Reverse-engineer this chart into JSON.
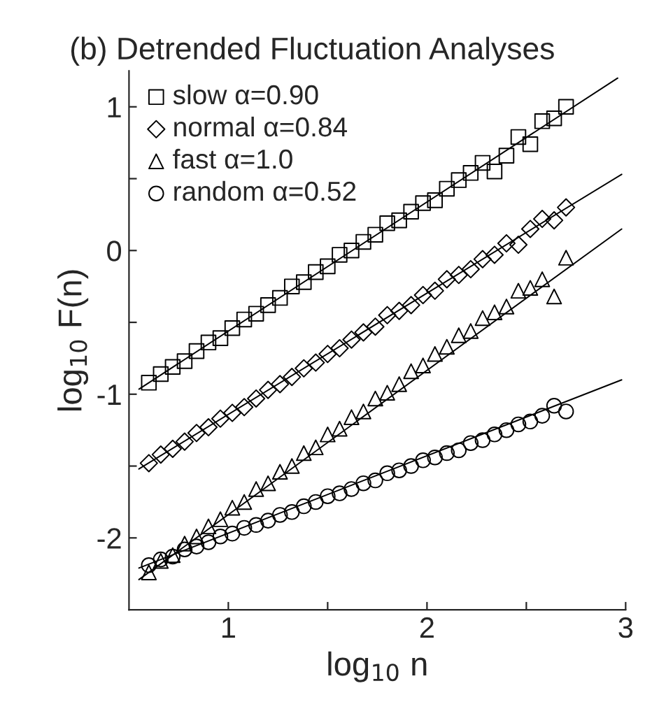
{
  "chart_data": {
    "type": "scatter",
    "title": "(b) Detrended Fluctuation Analyses",
    "xlabel": "log$_{10}$ n",
    "ylabel": "log$_{10}$ F(n)",
    "xlim": [
      0.5,
      3.0
    ],
    "ylim": [
      -2.5,
      1.25
    ],
    "xticks": [
      1,
      {
        "value": 1.5,
        "label": null
      },
      2,
      {
        "value": 2.5,
        "label": null
      },
      3
    ],
    "yticks": [
      -2,
      {
        "value": -1.5,
        "label": null
      },
      -1,
      {
        "value": -0.5,
        "label": null
      },
      0,
      {
        "value": 0.5,
        "label": null
      },
      1
    ],
    "legend": "top left",
    "x": [
      0.6,
      0.66,
      0.72,
      0.78,
      0.84,
      0.9,
      0.96,
      1.02,
      1.08,
      1.14,
      1.2,
      1.26,
      1.32,
      1.38,
      1.44,
      1.5,
      1.56,
      1.62,
      1.68,
      1.74,
      1.8,
      1.86,
      1.92,
      1.98,
      2.04,
      2.1,
      2.16,
      2.22,
      2.28,
      2.34,
      2.4,
      2.46,
      2.52,
      2.58,
      2.64,
      2.7
    ],
    "series": [
      {
        "name": "slow α=0.90",
        "color": "#000000",
        "marker": "square",
        "values": [
          -0.92,
          -0.86,
          -0.81,
          -0.77,
          -0.7,
          -0.64,
          -0.61,
          -0.54,
          -0.48,
          -0.44,
          -0.38,
          -0.33,
          -0.25,
          -0.22,
          -0.15,
          -0.11,
          -0.03,
          0.0,
          0.06,
          0.11,
          0.19,
          0.21,
          0.27,
          0.33,
          0.35,
          0.43,
          0.49,
          0.54,
          0.61,
          0.55,
          0.66,
          0.79,
          0.74,
          0.9,
          0.92,
          1.0
        ]
      },
      {
        "name": "normal α=0.84",
        "color": "#000000",
        "marker": "diamond",
        "values": [
          -1.48,
          -1.42,
          -1.38,
          -1.33,
          -1.27,
          -1.23,
          -1.17,
          -1.13,
          -1.09,
          -1.03,
          -0.97,
          -0.93,
          -0.88,
          -0.82,
          -0.78,
          -0.72,
          -0.68,
          -0.62,
          -0.57,
          -0.53,
          -0.45,
          -0.42,
          -0.38,
          -0.31,
          -0.28,
          -0.2,
          -0.17,
          -0.13,
          -0.06,
          -0.03,
          0.05,
          0.04,
          0.15,
          0.22,
          0.21,
          0.3
        ]
      },
      {
        "name": "fast α=1.0",
        "color": "#000000",
        "marker": "triangle",
        "values": [
          -2.24,
          -2.16,
          -2.12,
          -2.04,
          -1.99,
          -1.92,
          -1.87,
          -1.79,
          -1.75,
          -1.66,
          -1.62,
          -1.54,
          -1.5,
          -1.41,
          -1.37,
          -1.28,
          -1.24,
          -1.16,
          -1.12,
          -1.03,
          -0.99,
          -0.93,
          -0.84,
          -0.8,
          -0.72,
          -0.67,
          -0.59,
          -0.56,
          -0.47,
          -0.43,
          -0.39,
          -0.28,
          -0.26,
          -0.2,
          -0.32,
          -0.05
        ]
      },
      {
        "name": "random α=0.52",
        "color": "#000000",
        "marker": "circle",
        "values": [
          -2.19,
          -2.15,
          -2.13,
          -2.08,
          -2.06,
          -2.03,
          -1.99,
          -1.97,
          -1.93,
          -1.91,
          -1.88,
          -1.84,
          -1.82,
          -1.78,
          -1.75,
          -1.71,
          -1.69,
          -1.66,
          -1.62,
          -1.6,
          -1.55,
          -1.53,
          -1.5,
          -1.46,
          -1.44,
          -1.41,
          -1.39,
          -1.34,
          -1.32,
          -1.28,
          -1.25,
          -1.21,
          -1.19,
          -1.15,
          -1.08,
          -1.12
        ]
      },
      {
        "type": "line",
        "color": "#000000",
        "marker": "none",
        "x": [
          0.55,
          2.96
        ],
        "values": [
          -0.965,
          1.2
        ]
      },
      {
        "type": "line",
        "color": "#000000",
        "marker": "none",
        "x": [
          0.55,
          2.98
        ],
        "values": [
          -1.52,
          0.53
        ]
      },
      {
        "type": "line",
        "color": "#000000",
        "marker": "none",
        "x": [
          0.55,
          2.98
        ],
        "values": [
          -2.29,
          0.15
        ]
      },
      {
        "type": "line",
        "color": "#000000",
        "marker": "none",
        "x": [
          0.55,
          2.98
        ],
        "values": [
          -2.21,
          -0.9
        ]
      }
    ]
  }
}
